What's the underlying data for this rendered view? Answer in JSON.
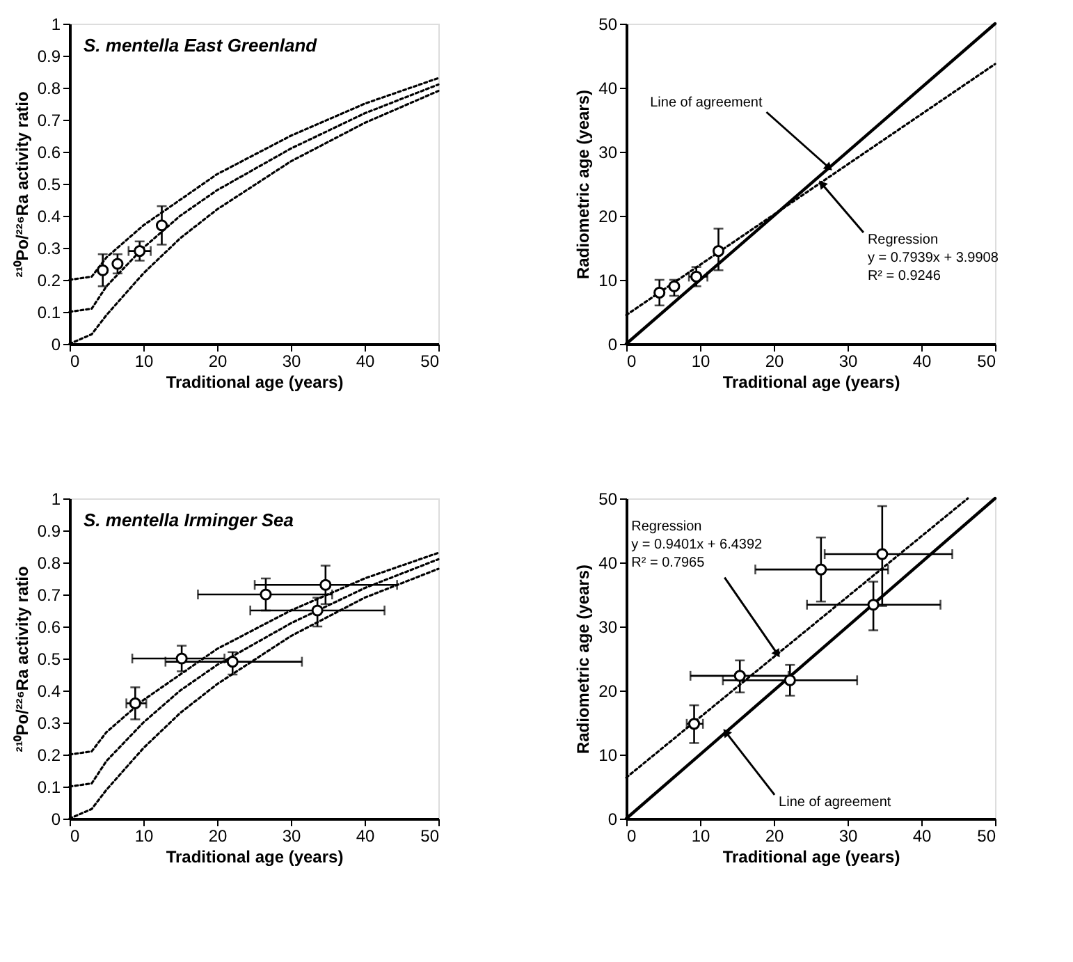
{
  "chart_data": [
    {
      "type": "scatter",
      "title": "S. mentella East Greenland",
      "xlabel": "Traditional age (years)",
      "ylabel": "²¹⁰Po/²²⁶Ra activity ratio",
      "xlim": [
        0,
        50
      ],
      "xticks": [
        0,
        10,
        20,
        30,
        40,
        50
      ],
      "ylim": [
        0,
        1
      ],
      "yticks": [
        0,
        0.1,
        0.2,
        0.3,
        0.4,
        0.5,
        0.6,
        0.7,
        0.8,
        0.9,
        1
      ],
      "series": [
        {
          "type": "line",
          "line_style": "dotted",
          "color": "#000000",
          "x": [
            0,
            3,
            5,
            10,
            15,
            20,
            30,
            40,
            50
          ],
          "values": [
            0.2,
            0.21,
            0.27,
            0.37,
            0.45,
            0.53,
            0.65,
            0.75,
            0.83
          ]
        },
        {
          "type": "line",
          "line_style": "dotted",
          "color": "#000000",
          "x": [
            0,
            3,
            5,
            10,
            15,
            20,
            30,
            40,
            50
          ],
          "values": [
            0.1,
            0.11,
            0.18,
            0.3,
            0.4,
            0.48,
            0.61,
            0.72,
            0.81
          ]
        },
        {
          "type": "line",
          "line_style": "dotted",
          "color": "#000000",
          "x": [
            0,
            3,
            5,
            10,
            15,
            20,
            30,
            40,
            50
          ],
          "values": [
            0,
            0.03,
            0.09,
            0.22,
            0.33,
            0.42,
            0.57,
            0.69,
            0.79
          ]
        },
        {
          "type": "scatter",
          "marker": "circle",
          "color": "#000000",
          "x": [
            4.5,
            6.5,
            9.5,
            12.5
          ],
          "values": [
            0.23,
            0.25,
            0.29,
            0.37
          ],
          "errors": [
            [
              0.18,
              0.28
            ],
            [
              0.22,
              0.28
            ],
            [
              0.26,
              0.32
            ],
            [
              0.31,
              0.43
            ]
          ],
          "xerrors": [
            null,
            null,
            [
              8,
              11
            ],
            null
          ]
        }
      ]
    },
    {
      "type": "scatter",
      "xlabel": "Traditional age (years)",
      "ylabel": "Radiometric age (years)",
      "xlim": [
        0,
        50
      ],
      "xticks": [
        0,
        10,
        20,
        30,
        40,
        50
      ],
      "ylim": [
        0,
        50
      ],
      "yticks": [
        0,
        10,
        20,
        30,
        40,
        50
      ],
      "annotations": [
        {
          "text": "Line of agreement",
          "x": 27.5,
          "y": 27.5
        },
        {
          "text": "Regression\ny = 0.7939x + 3.9908\nR² = 0.9246",
          "x": 26.5,
          "y": 25
        }
      ],
      "series": [
        {
          "type": "line",
          "line_style": "solid",
          "color": "#000000",
          "x": [
            0,
            50
          ],
          "values": [
            0,
            50
          ]
        },
        {
          "type": "line",
          "line_style": "dotted",
          "color": "#000000",
          "x": [
            0,
            50
          ],
          "values": [
            4.5,
            43.7
          ]
        },
        {
          "type": "scatter",
          "marker": "circle",
          "color": "#000000",
          "x": [
            4.5,
            6.5,
            9.5,
            12.5
          ],
          "values": [
            8,
            9,
            10.5,
            14.5
          ],
          "errors": [
            [
              6,
              10
            ],
            [
              7.5,
              10
            ],
            [
              9,
              12
            ],
            [
              11.5,
              18
            ]
          ],
          "xerrors": [
            null,
            null,
            [
              8.5,
              11
            ],
            null
          ]
        }
      ]
    },
    {
      "type": "scatter",
      "title": "S. mentella Irminger Sea",
      "xlabel": "Traditional age (years)",
      "ylabel": "²¹⁰Po/²²⁶Ra activity ratio",
      "xlim": [
        0,
        50
      ],
      "xticks": [
        0,
        10,
        20,
        30,
        40,
        50
      ],
      "ylim": [
        0,
        1
      ],
      "yticks": [
        0,
        0.1,
        0.2,
        0.3,
        0.4,
        0.5,
        0.6,
        0.7,
        0.8,
        0.9,
        1
      ],
      "series": [
        {
          "type": "line",
          "line_style": "dotted",
          "color": "#000000",
          "x": [
            0,
            3,
            5,
            10,
            15,
            20,
            30,
            40,
            50
          ],
          "values": [
            0.2,
            0.21,
            0.27,
            0.37,
            0.45,
            0.53,
            0.65,
            0.75,
            0.83
          ]
        },
        {
          "type": "line",
          "line_style": "dotted",
          "color": "#000000",
          "x": [
            0,
            3,
            5,
            10,
            15,
            20,
            30,
            40,
            50
          ],
          "values": [
            0.1,
            0.11,
            0.18,
            0.3,
            0.4,
            0.48,
            0.61,
            0.72,
            0.81
          ]
        },
        {
          "type": "line",
          "line_style": "dotted",
          "color": "#000000",
          "x": [
            0,
            3,
            5,
            10,
            15,
            20,
            30,
            40,
            50
          ],
          "values": [
            0,
            0.03,
            0.09,
            0.22,
            0.33,
            0.42,
            0.57,
            0.69,
            0.78
          ]
        },
        {
          "type": "scatter",
          "marker": "circle",
          "color": "#000000",
          "x": [
            8.9,
            15.2,
            22.1,
            26.6,
            34.7,
            33.6
          ],
          "values": [
            0.36,
            0.5,
            0.49,
            0.7,
            0.73,
            0.65
          ],
          "errors": [
            [
              0.31,
              0.41
            ],
            [
              0.46,
              0.54
            ],
            [
              0.45,
              0.52
            ],
            [
              0.65,
              0.75
            ],
            [
              0.67,
              0.79
            ],
            [
              0.6,
              0.69
            ]
          ],
          "xerrors": [
            [
              7.7,
              10.4
            ],
            [
              8.5,
              21
            ],
            [
              13,
              31.5
            ],
            [
              17.4,
              35.6
            ],
            [
              25.1,
              44.4
            ],
            [
              24.5,
              42.7
            ]
          ]
        }
      ]
    },
    {
      "type": "scatter",
      "xlabel": "Traditional age (years)",
      "ylabel": "Radiometric age (years)",
      "xlim": [
        0,
        50
      ],
      "xticks": [
        0,
        10,
        20,
        30,
        40,
        50
      ],
      "ylim": [
        0,
        50
      ],
      "yticks": [
        0,
        10,
        20,
        30,
        40,
        50
      ],
      "annotations": [
        {
          "text": "Regression\ny = 0.9401x + 6.4392\nR² = 0.7965",
          "x": 20.5,
          "y": 25.7
        },
        {
          "text": "Line of agreement",
          "x": 13.5,
          "y": 13.5
        }
      ],
      "series": [
        {
          "type": "line",
          "line_style": "solid",
          "color": "#000000",
          "x": [
            0,
            50
          ],
          "values": [
            0,
            50
          ]
        },
        {
          "type": "line",
          "line_style": "dotted",
          "color": "#000000",
          "x": [
            0,
            46.3
          ],
          "values": [
            6.4,
            50
          ]
        },
        {
          "type": "scatter",
          "marker": "circle",
          "color": "#000000",
          "x": [
            9.2,
            15.4,
            22.2,
            26.4,
            34.7,
            33.5
          ],
          "values": [
            14.8,
            22.3,
            21.6,
            38.9,
            41.3,
            33.4
          ],
          "errors": [
            [
              11.8,
              17.7
            ],
            [
              19.7,
              24.7
            ],
            [
              19.2,
              24
            ],
            [
              33.9,
              43.9
            ],
            [
              33.2,
              48.8
            ],
            [
              29.4,
              37
            ]
          ],
          "xerrors": [
            [
              8.2,
              10.4
            ],
            [
              8.7,
              22
            ],
            [
              13.1,
              31.3
            ],
            [
              17.5,
              35.5
            ],
            [
              26.9,
              44.2
            ],
            [
              24.5,
              42.6
            ]
          ]
        }
      ]
    }
  ]
}
